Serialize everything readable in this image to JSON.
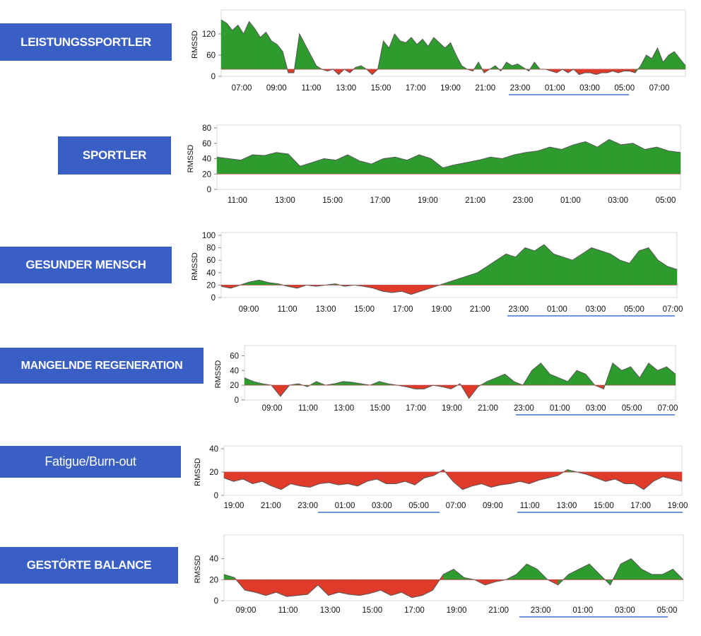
{
  "chart_data": [
    {
      "type": "area",
      "category": "LEISTUNGSSPORTLER",
      "ylabel": "RMSSD",
      "ylim": [
        0,
        180
      ],
      "yticks": [
        0,
        60,
        120
      ],
      "xticks": [
        "07:00",
        "09:00",
        "11:00",
        "13:00",
        "15:00",
        "17:00",
        "19:00",
        "21:00",
        "23:00",
        "01:00",
        "03:00",
        "05:00",
        "07:00"
      ],
      "baseline": 20,
      "series": [
        {
          "x": [
            0,
            0.3,
            0.6,
            0.9,
            1.2,
            1.5,
            1.8,
            2.1,
            2.4,
            2.7,
            3.0,
            3.3,
            3.6,
            3.9,
            4.2,
            4.5,
            4.8,
            5.1,
            5.4,
            5.7,
            6.0,
            6.3,
            6.6,
            6.9,
            7.2,
            7.5,
            7.8,
            8.1,
            8.4,
            8.7,
            9.0,
            9.3,
            9.6,
            9.9,
            10.2,
            10.5,
            10.8,
            11.1,
            11.4,
            11.7,
            12.0,
            12.3,
            12.6,
            12.9,
            13.2,
            13.5,
            13.8,
            14.1,
            14.4,
            14.7,
            15.0,
            15.3,
            15.6,
            15.9,
            16.2,
            16.5,
            16.8,
            17.1,
            17.4,
            17.7,
            18.0,
            18.3,
            18.6,
            18.9,
            19.2,
            19.5,
            19.8,
            20.1,
            20.4,
            20.7,
            21.0,
            21.3,
            21.6,
            21.9,
            22.2,
            22.5,
            22.8,
            23.1,
            23.4,
            23.7,
            24.0,
            24.3,
            24.6,
            24.9
          ],
          "values": [
            160,
            150,
            130,
            145,
            120,
            155,
            135,
            110,
            125,
            100,
            90,
            70,
            10,
            10,
            120,
            90,
            60,
            30,
            20,
            15,
            20,
            5,
            20,
            10,
            25,
            30,
            20,
            5,
            20,
            100,
            80,
            120,
            100,
            95,
            110,
            90,
            105,
            85,
            110,
            95,
            80,
            95,
            60,
            30,
            20,
            15,
            40,
            10,
            20,
            30,
            15,
            40,
            30,
            35,
            25,
            15,
            40,
            20,
            20,
            15,
            10,
            20,
            10,
            20,
            5,
            10,
            10,
            5,
            10,
            10,
            15,
            10,
            15,
            15,
            10,
            30,
            60,
            50,
            80,
            40,
            60,
            70,
            50,
            30
          ]
        }
      ]
    },
    {
      "type": "area",
      "category": "SPORTLER",
      "ylabel": "RMSSD",
      "ylim": [
        0,
        80
      ],
      "yticks": [
        0,
        20,
        40,
        60,
        80
      ],
      "xticks": [
        "11:00",
        "13:00",
        "15:00",
        "17:00",
        "19:00",
        "21:00",
        "23:00",
        "01:00",
        "03:00",
        "05:00"
      ],
      "baseline": 20,
      "series": [
        {
          "x": [
            0,
            0.5,
            1,
            1.5,
            2,
            2.5,
            3,
            3.5,
            4,
            4.5,
            5,
            5.5,
            6,
            6.5,
            7,
            7.5,
            8,
            8.5,
            9,
            9.5,
            10,
            10.5,
            11,
            11.5,
            12,
            12.5,
            13,
            13.5,
            14,
            14.5,
            15,
            15.5,
            16,
            16.5,
            17,
            17.5,
            18,
            18.5,
            19,
            19.5
          ],
          "values": [
            42,
            40,
            38,
            45,
            44,
            48,
            46,
            30,
            35,
            40,
            38,
            45,
            37,
            33,
            40,
            42,
            38,
            45,
            40,
            28,
            32,
            35,
            38,
            42,
            40,
            45,
            48,
            50,
            55,
            52,
            58,
            62,
            55,
            65,
            58,
            60,
            52,
            55,
            50,
            48
          ]
        }
      ]
    },
    {
      "type": "area",
      "category": "GESUNDER MENSCH",
      "ylabel": "RMSSD",
      "ylim": [
        0,
        100
      ],
      "yticks": [
        0,
        20,
        40,
        60,
        80,
        100
      ],
      "xticks": [
        "09:00",
        "11:00",
        "13:00",
        "15:00",
        "17:00",
        "19:00",
        "21:00",
        "23:00",
        "01:00",
        "03:00",
        "05:00",
        "07:00"
      ],
      "baseline": 20,
      "series": [
        {
          "x": [
            0,
            0.5,
            1,
            1.5,
            2,
            2.5,
            3,
            3.5,
            4,
            4.5,
            5,
            5.5,
            6,
            6.5,
            7,
            7.5,
            8,
            8.5,
            9,
            9.5,
            10,
            10.5,
            11,
            11.5,
            12,
            12.5,
            13,
            13.5,
            14,
            14.5,
            15,
            15.5,
            16,
            16.5,
            17,
            17.5,
            18,
            18.5,
            19,
            19.5,
            20,
            20.5,
            21,
            21.5,
            22,
            22.5,
            23,
            23.5,
            24
          ],
          "values": [
            18,
            15,
            20,
            25,
            28,
            24,
            22,
            18,
            15,
            20,
            18,
            20,
            22,
            18,
            20,
            18,
            15,
            10,
            8,
            10,
            5,
            10,
            15,
            20,
            25,
            30,
            35,
            40,
            50,
            60,
            70,
            65,
            80,
            75,
            85,
            70,
            65,
            60,
            70,
            80,
            75,
            70,
            60,
            55,
            75,
            80,
            60,
            50,
            45
          ]
        }
      ]
    },
    {
      "type": "area",
      "category": "MANGELNDE REGENERATION",
      "ylabel": "RMSSD",
      "ylim": [
        0,
        70
      ],
      "yticks": [
        0,
        20,
        40,
        60
      ],
      "xticks": [
        "09:00",
        "11:00",
        "13:00",
        "15:00",
        "17:00",
        "19:00",
        "21:00",
        "23:00",
        "01:00",
        "03:00",
        "05:00",
        "07:00"
      ],
      "baseline": 20,
      "series": [
        {
          "x": [
            0,
            0.5,
            1,
            1.5,
            2,
            2.5,
            3,
            3.5,
            4,
            4.5,
            5,
            5.5,
            6,
            6.5,
            7,
            7.5,
            8,
            8.5,
            9,
            9.5,
            10,
            10.5,
            11,
            11.5,
            12,
            12.5,
            13,
            13.5,
            14,
            14.5,
            15,
            15.5,
            16,
            16.5,
            17,
            17.5,
            18,
            18.5,
            19,
            19.5,
            20,
            20.5,
            21,
            21.5,
            22,
            22.5,
            23,
            23.5,
            24
          ],
          "values": [
            30,
            25,
            22,
            20,
            5,
            20,
            22,
            18,
            25,
            20,
            22,
            25,
            24,
            22,
            20,
            25,
            22,
            20,
            18,
            15,
            15,
            20,
            18,
            15,
            22,
            2,
            18,
            25,
            30,
            35,
            25,
            20,
            40,
            50,
            35,
            30,
            25,
            40,
            35,
            20,
            15,
            50,
            40,
            45,
            30,
            50,
            40,
            45,
            35
          ]
        }
      ]
    },
    {
      "type": "area",
      "category": "Fatigue/Burn-out",
      "ylabel": "RMSSD",
      "ylim": [
        0,
        40
      ],
      "yticks": [
        0,
        20,
        40
      ],
      "xticks": [
        "19:00",
        "21:00",
        "23:00",
        "01:00",
        "03:00",
        "05:00",
        "07:00",
        "09:00",
        "11:00",
        "13:00",
        "15:00",
        "17:00",
        "19:00"
      ],
      "baseline": 20,
      "series": [
        {
          "x": [
            0,
            0.5,
            1,
            1.5,
            2,
            2.5,
            3,
            3.5,
            4,
            4.5,
            5,
            5.5,
            6,
            6.5,
            7,
            7.5,
            8,
            8.5,
            9,
            9.5,
            10,
            10.5,
            11,
            11.5,
            12,
            12.5,
            13,
            13.5,
            14,
            14.5,
            15,
            15.5,
            16,
            16.5,
            17,
            17.5,
            18,
            18.5,
            19,
            19.5,
            20,
            20.5,
            21,
            21.5,
            22,
            22.5,
            23,
            23.5,
            24
          ],
          "values": [
            15,
            12,
            14,
            10,
            12,
            8,
            5,
            10,
            8,
            7,
            10,
            11,
            9,
            10,
            8,
            12,
            14,
            10,
            10,
            12,
            9,
            15,
            17,
            22,
            12,
            5,
            8,
            10,
            7,
            9,
            10,
            12,
            10,
            13,
            15,
            17,
            22,
            20,
            18,
            15,
            12,
            14,
            10,
            10,
            5,
            12,
            16,
            14,
            12
          ]
        }
      ]
    },
    {
      "type": "area",
      "category": "GESTÖRTE BALANCE",
      "ylabel": "RMSSD",
      "ylim": [
        0,
        60
      ],
      "yticks": [
        0,
        20,
        40
      ],
      "xticks": [
        "09:00",
        "11:00",
        "13:00",
        "15:00",
        "17:00",
        "19:00",
        "21:00",
        "23:00",
        "01:00",
        "03:00",
        "05:00"
      ],
      "baseline": 20,
      "series": [
        {
          "x": [
            0,
            0.5,
            1,
            1.5,
            2,
            2.5,
            3,
            3.5,
            4,
            4.5,
            5,
            5.5,
            6,
            6.5,
            7,
            7.5,
            8,
            8.5,
            9,
            9.5,
            10,
            10.5,
            11,
            11.5,
            12,
            12.5,
            13,
            13.5,
            14,
            14.5,
            15,
            15.5,
            16,
            16.5,
            17,
            17.5,
            18,
            18.5,
            19,
            19.5,
            20,
            20.5,
            21,
            21.5,
            22
          ],
          "values": [
            25,
            22,
            10,
            8,
            5,
            8,
            4,
            5,
            6,
            15,
            5,
            8,
            6,
            5,
            7,
            10,
            5,
            8,
            3,
            5,
            10,
            25,
            30,
            22,
            20,
            15,
            18,
            20,
            25,
            35,
            30,
            20,
            15,
            25,
            30,
            35,
            25,
            15,
            35,
            40,
            30,
            25,
            25,
            30,
            20
          ]
        }
      ]
    }
  ]
}
